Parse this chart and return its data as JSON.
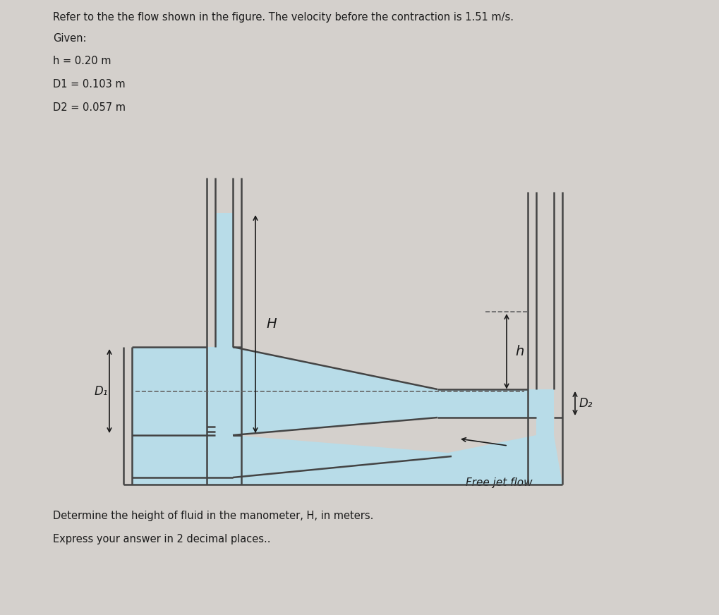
{
  "bg_color": "#d4d0cc",
  "text_color": "#1a1a1a",
  "fluid_color": "#b8dce8",
  "wall_color": "#444444",
  "dash_color": "#666666",
  "title_line1": "Refer to the the flow shown in the figure. The velocity before the contraction is 1.51 m/s.",
  "given_label": "Given:",
  "h_label": "h = 0.20 m",
  "D1_label": "D1 = 0.103 m",
  "D2_label": "D2 = 0.057 m",
  "question_line1": "Determine the height of fluid in the manometer, H, in meters.",
  "question_line2": "Express your answer in 2 decimal places..",
  "free_jet_label": "Free jet flow",
  "H_label": "H",
  "h_arrow_label": "h",
  "D1_arrow_label": "D₁",
  "D2_arrow_label": "D₂"
}
